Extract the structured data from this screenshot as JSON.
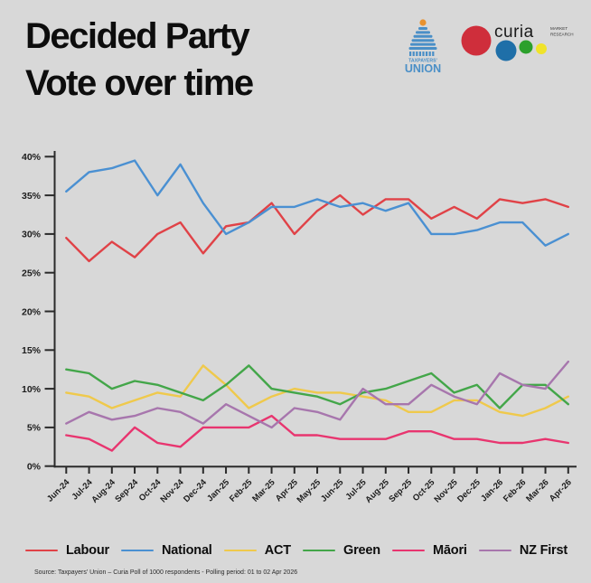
{
  "title": {
    "line1": "Decided Party",
    "line2": "Vote over time"
  },
  "logos": {
    "taxpayers_union": {
      "line1": "TAXPAYERS'",
      "line2": "UNION",
      "color": "#4a8fc7",
      "dot_color": "#e8922f"
    },
    "curia": {
      "name": "curia",
      "tagline_line1": "MARKET",
      "tagline_line2": "RESEARCH",
      "circle_colors": [
        "#cf2e3b",
        "#1f6fa8",
        "#2ca02c",
        "#f0e32a"
      ]
    }
  },
  "chart_data": {
    "type": "line",
    "categories": [
      "Jun-24",
      "Jul-24",
      "Aug-24",
      "Sep-24",
      "Oct-24",
      "Nov-24",
      "Dec-24",
      "Jan-25",
      "Feb-25",
      "Mar-25",
      "Apr-25",
      "May-25",
      "Jun-25",
      "Jul-25",
      "Aug-25",
      "Sep-25",
      "Oct-25",
      "Nov-25",
      "Dec-25",
      "Jan-26",
      "Feb-26",
      "Mar-26",
      "Apr-26"
    ],
    "series": [
      {
        "name": "Labour",
        "color": "#e04247",
        "values": [
          29.5,
          26.5,
          29,
          27,
          30,
          31.5,
          27.5,
          31,
          31.5,
          34,
          30,
          33,
          35,
          32.5,
          34.5,
          34.5,
          32,
          33.5,
          32,
          34.5,
          34,
          34.5,
          33.5
        ]
      },
      {
        "name": "National",
        "color": "#4a90d2",
        "values": [
          35.5,
          38,
          38.5,
          39.5,
          35,
          39,
          34,
          30,
          31.5,
          33.5,
          33.5,
          34.5,
          33.5,
          34,
          33,
          34,
          30,
          30,
          30.5,
          31.5,
          31.5,
          28.5,
          30
        ]
      },
      {
        "name": "ACT",
        "color": "#efc94c",
        "values": [
          9.5,
          9,
          7.5,
          8.5,
          9.5,
          9,
          13,
          10.5,
          7.5,
          9,
          10,
          9.5,
          9.5,
          9,
          8.5,
          7,
          7,
          8.5,
          8.5,
          7,
          6.5,
          7.5,
          9
        ]
      },
      {
        "name": "Green",
        "color": "#43a649",
        "values": [
          12.5,
          12,
          10,
          11,
          10.5,
          9.5,
          8.5,
          10.5,
          13,
          10,
          9.5,
          9,
          8,
          9.5,
          10,
          11,
          12,
          9.5,
          10.5,
          7.5,
          10.5,
          10.5,
          8
        ]
      },
      {
        "name": "Māori",
        "color": "#e8356f",
        "values": [
          4,
          3.5,
          2,
          5,
          3,
          2.5,
          5,
          5,
          5,
          6.5,
          4,
          4,
          3.5,
          3.5,
          3.5,
          4.5,
          4.5,
          3.5,
          3.5,
          3,
          3,
          3.5,
          3
        ]
      },
      {
        "name": "NZ First",
        "color": "#a776ad",
        "values": [
          5.5,
          7,
          6,
          6.5,
          7.5,
          7,
          5.5,
          8,
          6.5,
          5,
          7.5,
          7,
          6,
          10,
          8,
          8,
          10.5,
          9,
          8,
          12,
          10.5,
          10,
          13.5
        ]
      }
    ],
    "ylim": [
      0,
      40
    ],
    "y_ticks": [
      "0%",
      "5%",
      "10%",
      "15%",
      "20%",
      "25%",
      "30%",
      "35%",
      "40%"
    ],
    "grid": false,
    "legend_position": "bottom",
    "xlabel": "",
    "ylabel": ""
  },
  "footer": {
    "source": "Source: Taxpayers' Union – Curia Poll of 1000 respondents - Polling period: 01 to 02 Apr 2026"
  }
}
